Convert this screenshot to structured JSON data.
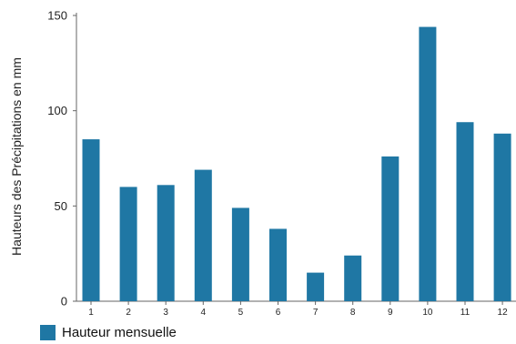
{
  "chart_data": {
    "type": "bar",
    "categories": [
      "1",
      "2",
      "3",
      "4",
      "5",
      "6",
      "7",
      "8",
      "9",
      "10",
      "11",
      "12"
    ],
    "series": [
      {
        "name": "Hauteur mensuelle",
        "values": [
          85,
          60,
          61,
          69,
          49,
          38,
          15,
          24,
          76,
          144,
          94,
          88
        ],
        "color": "#1f77a4"
      }
    ],
    "xlabel": "",
    "ylabel": "Hauteurs des Précipitations en mm",
    "ylim": [
      0,
      150
    ],
    "yticks": [
      0,
      50,
      100,
      150
    ],
    "grid": false,
    "legend": "bottom-left"
  }
}
